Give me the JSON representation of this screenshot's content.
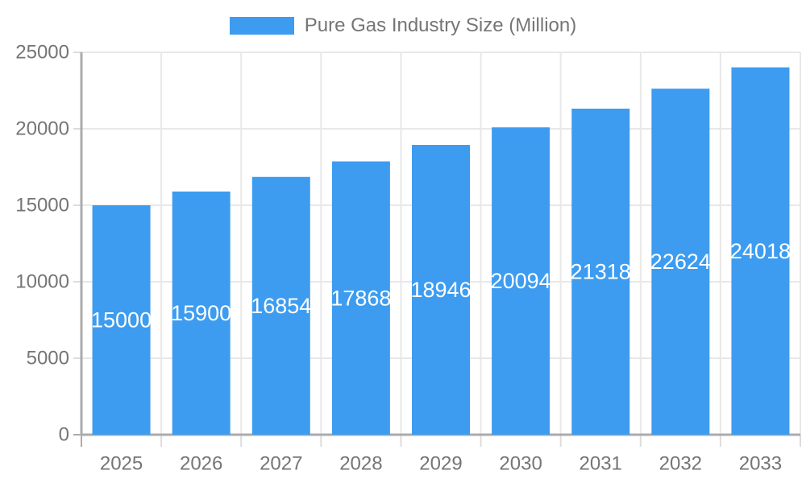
{
  "chart_data": {
    "type": "bar",
    "title": "Pure Gas Industry Size (Million)",
    "legend": {
      "position": "top",
      "entries": [
        "Pure Gas Industry Size (Million)"
      ]
    },
    "categories": [
      "2025",
      "2026",
      "2027",
      "2028",
      "2029",
      "2030",
      "2031",
      "2032",
      "2033"
    ],
    "series": [
      {
        "name": "Pure Gas Industry Size (Million)",
        "values": [
          15000,
          15900,
          16854,
          17868,
          18946,
          20094,
          21318,
          22624,
          24018
        ]
      }
    ],
    "value_labels": {
      "visible": true,
      "position": "inside-center",
      "color": "#FFFFFF"
    },
    "xlabel": "",
    "ylabel": "",
    "ylim": [
      0,
      25000
    ],
    "yticks": [
      0,
      5000,
      10000,
      15000,
      20000,
      25000
    ],
    "grid": true
  },
  "colors": {
    "bar_fill": "#3D9CF0",
    "axis_line": "#ABABAB",
    "gridline": "#E8E8E8",
    "tick_mark": "#DCDCDC",
    "label_text": "#757575",
    "value_label_text": "#FFFFFF",
    "background": "#FFFFFF"
  }
}
